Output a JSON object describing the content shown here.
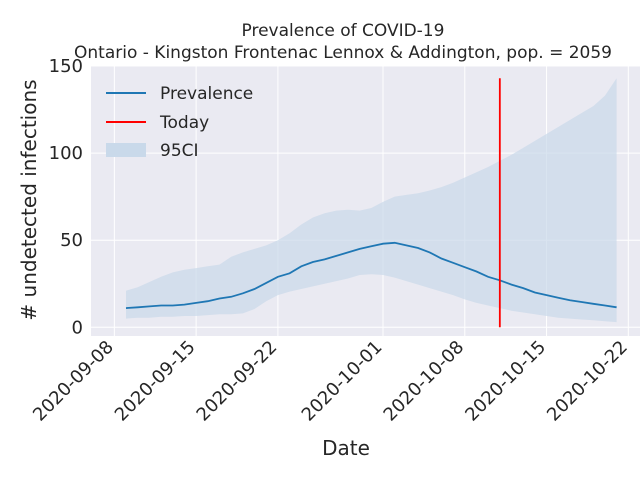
{
  "chart_data": {
    "type": "line",
    "title": "Prevalence of COVID-19",
    "subtitle": "Ontario - Kingston Frontenac Lennox & Addington, pop. = 2059",
    "xlabel": "Date",
    "ylabel": "# undetected infections",
    "xlim": [
      "2020-09-06",
      "2020-10-23"
    ],
    "ylim": [
      -5,
      150
    ],
    "y_ticks": [
      0,
      50,
      100,
      150
    ],
    "x_ticks": [
      "2020-09-08",
      "2020-09-15",
      "2020-09-22",
      "2020-10-01",
      "2020-10-08",
      "2020-10-15",
      "2020-10-22"
    ],
    "grid": true,
    "legend_position": "top-left",
    "colors": {
      "background": "#eaeaf2",
      "grid": "#ffffff",
      "prevalence": "#1f77b4",
      "today": "#ff0000",
      "ci_fill": "#c9d9ea"
    },
    "today": "2020-10-11",
    "series": [
      {
        "name": "Prevalence",
        "x": [
          "2020-09-09",
          "2020-09-10",
          "2020-09-11",
          "2020-09-12",
          "2020-09-13",
          "2020-09-14",
          "2020-09-15",
          "2020-09-16",
          "2020-09-17",
          "2020-09-18",
          "2020-09-19",
          "2020-09-20",
          "2020-09-21",
          "2020-09-22",
          "2020-09-23",
          "2020-09-24",
          "2020-09-25",
          "2020-09-26",
          "2020-09-27",
          "2020-09-28",
          "2020-09-29",
          "2020-09-30",
          "2020-10-01",
          "2020-10-02",
          "2020-10-03",
          "2020-10-04",
          "2020-10-05",
          "2020-10-06",
          "2020-10-07",
          "2020-10-08",
          "2020-10-09",
          "2020-10-10",
          "2020-10-11",
          "2020-10-12",
          "2020-10-13",
          "2020-10-14",
          "2020-10-15",
          "2020-10-16",
          "2020-10-17",
          "2020-10-18",
          "2020-10-19",
          "2020-10-20",
          "2020-10-21"
        ],
        "values": [
          11,
          11.5,
          12,
          12.5,
          12.5,
          13,
          14,
          15,
          16.5,
          17.5,
          19.5,
          22,
          25.5,
          29,
          31,
          35,
          37.5,
          39,
          41,
          43,
          45,
          46.5,
          48,
          48.5,
          47,
          45.5,
          43,
          39.5,
          37,
          34.5,
          32,
          29,
          27,
          24.5,
          22.5,
          20,
          18.5,
          17,
          15.5,
          14.5,
          13.5,
          12.5,
          11.5
        ]
      },
      {
        "name": "95CI",
        "x": [
          "2020-09-09",
          "2020-09-10",
          "2020-09-11",
          "2020-09-12",
          "2020-09-13",
          "2020-09-14",
          "2020-09-15",
          "2020-09-16",
          "2020-09-17",
          "2020-09-18",
          "2020-09-19",
          "2020-09-20",
          "2020-09-21",
          "2020-09-22",
          "2020-09-23",
          "2020-09-24",
          "2020-09-25",
          "2020-09-26",
          "2020-09-27",
          "2020-09-28",
          "2020-09-29",
          "2020-09-30",
          "2020-10-01",
          "2020-10-02",
          "2020-10-03",
          "2020-10-04",
          "2020-10-05",
          "2020-10-06",
          "2020-10-07",
          "2020-10-08",
          "2020-10-09",
          "2020-10-10",
          "2020-10-11",
          "2020-10-12",
          "2020-10-13",
          "2020-10-14",
          "2020-10-15",
          "2020-10-16",
          "2020-10-17",
          "2020-10-18",
          "2020-10-19",
          "2020-10-20",
          "2020-10-21"
        ],
        "lower": [
          5,
          5.5,
          5.5,
          6,
          6,
          6.5,
          6.5,
          7,
          7.5,
          7.5,
          8,
          10.5,
          15,
          18.5,
          20.5,
          22,
          23.5,
          25,
          26.5,
          28,
          30,
          30.5,
          30,
          28.5,
          26.5,
          24.5,
          22.5,
          20.5,
          18.5,
          16,
          14,
          12.5,
          11,
          9.5,
          8.5,
          7.5,
          6.5,
          5.5,
          5,
          4.5,
          4,
          3.5,
          3
        ],
        "upper": [
          21,
          23,
          26,
          29,
          31.5,
          33,
          34,
          35,
          36,
          40.5,
          43,
          45,
          47,
          50,
          54,
          59,
          63,
          65.5,
          67,
          67.5,
          67,
          68.5,
          72,
          75,
          76,
          77,
          78.5,
          80.5,
          83,
          86,
          89,
          92,
          95.5,
          99,
          103,
          107,
          111,
          115,
          119,
          123,
          127,
          133,
          143
        ]
      },
      {
        "name": "Today"
      }
    ]
  }
}
